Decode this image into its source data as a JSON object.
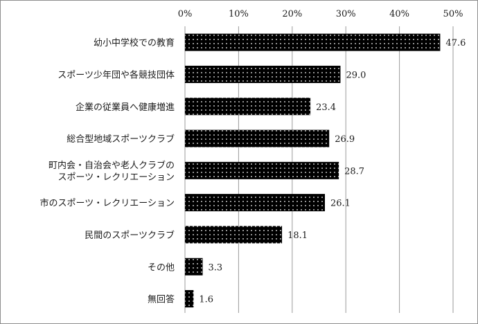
{
  "chart_data": {
    "type": "bar",
    "orientation": "horizontal",
    "categories": [
      [
        "幼小中学校での教育"
      ],
      [
        "スポーツ少年団や各競技団体"
      ],
      [
        "企業の従業員へ健康増進"
      ],
      [
        "総合型地域スポーツクラブ"
      ],
      [
        "町内会・自治会や老人クラブの",
        "スポーツ・レクリエーション"
      ],
      [
        "市のスポーツ・レクリエーション"
      ],
      [
        "民間のスポーツクラブ"
      ],
      [
        "その他"
      ],
      [
        "無回答"
      ]
    ],
    "values": [
      47.6,
      29.0,
      23.4,
      26.9,
      28.7,
      26.1,
      18.1,
      3.3,
      1.6
    ],
    "value_labels": [
      "47.6",
      "29.0",
      "23.4",
      "26.9",
      "28.7",
      "26.1",
      "18.1",
      "3.3",
      "1.6"
    ],
    "x_ticks": [
      0,
      10,
      20,
      30,
      40,
      50
    ],
    "x_tick_labels": [
      "0%",
      "10%",
      "20%",
      "30%",
      "40%",
      "50%"
    ],
    "xlim": [
      0,
      50
    ],
    "axis_position": "top",
    "grid": true,
    "bar_fill": "dotted-black",
    "colors": {
      "bar": "#000000",
      "dots": "#ffffff",
      "grid": "#9a9a9a",
      "frame": "#8c8c8c"
    }
  }
}
